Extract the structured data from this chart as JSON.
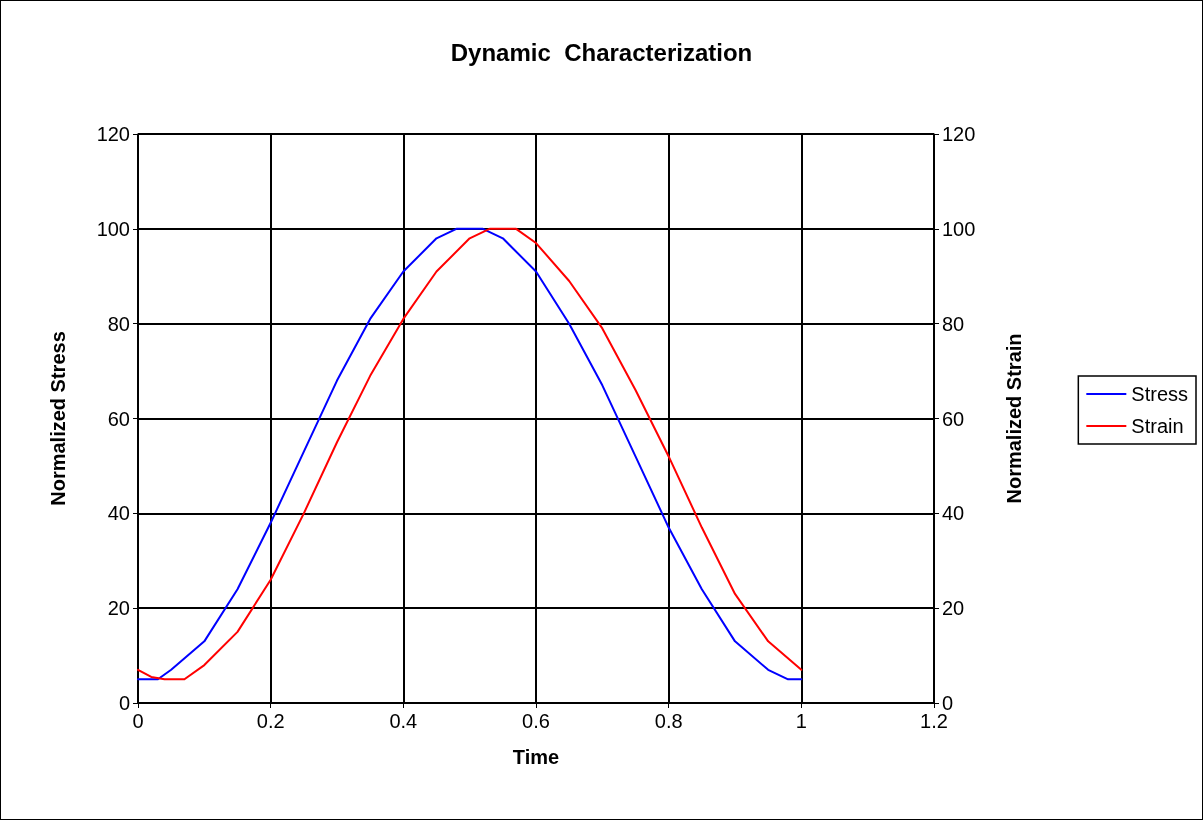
{
  "chart_data": {
    "type": "line",
    "title": "Dynamic  Characterization",
    "xlabel": "Time",
    "ylabel": "Normalized Stress",
    "y2label": "Normalized Strain",
    "xlim": [
      0,
      1.2
    ],
    "xticks": [
      0,
      0.2,
      0.4,
      0.6,
      0.8,
      1,
      1.2
    ],
    "ylim": [
      0,
      120
    ],
    "yticks": [
      0,
      20,
      40,
      60,
      80,
      100,
      120
    ],
    "y2lim": [
      0,
      120
    ],
    "y2ticks": [
      0,
      20,
      40,
      60,
      80,
      100,
      120
    ],
    "grid": true,
    "legend": "right",
    "marker": "none",
    "line_style": "solid",
    "series": [
      {
        "name": "Stress",
        "color": "#0000ff",
        "x": [
          0,
          0.03,
          0.05,
          0.1,
          0.15,
          0.2,
          0.25,
          0.3,
          0.35,
          0.4,
          0.45,
          0.48,
          0.52,
          0.55,
          0.6,
          0.65,
          0.7,
          0.75,
          0.8,
          0.85,
          0.9,
          0.95,
          0.98,
          1
        ],
        "values": [
          5,
          5,
          7,
          13,
          24,
          38,
          53,
          68,
          81,
          91,
          98,
          100,
          100,
          98,
          91,
          80,
          67,
          52,
          37,
          24,
          13,
          7,
          5,
          5
        ]
      },
      {
        "name": "Strain",
        "color": "#ff0000",
        "axis": "y2",
        "x": [
          0,
          0.02,
          0.04,
          0.07,
          0.1,
          0.15,
          0.2,
          0.25,
          0.3,
          0.35,
          0.4,
          0.45,
          0.5,
          0.53,
          0.57,
          0.6,
          0.65,
          0.7,
          0.75,
          0.8,
          0.85,
          0.9,
          0.95,
          1
        ],
        "values": [
          7,
          5.5,
          5,
          5,
          8,
          15,
          26,
          40,
          55,
          69,
          81,
          91,
          98,
          100,
          100,
          97,
          89,
          79,
          66,
          52,
          37,
          23,
          13,
          7
        ]
      }
    ]
  }
}
